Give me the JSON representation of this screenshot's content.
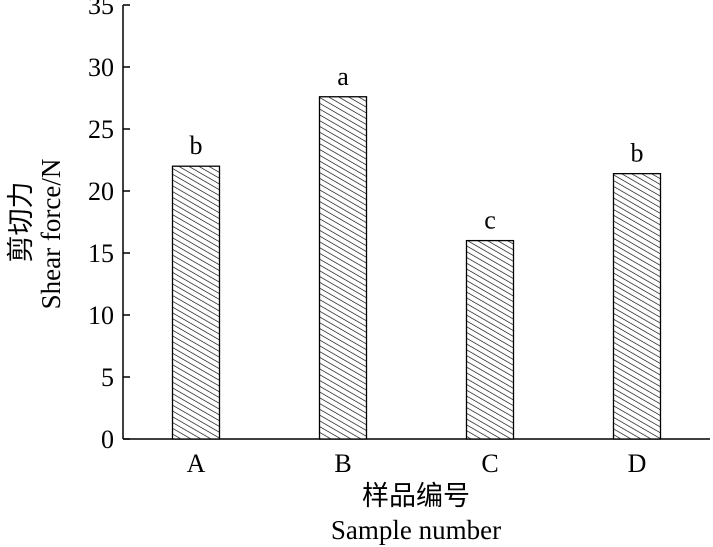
{
  "chart_data": {
    "type": "bar",
    "categories": [
      "A",
      "B",
      "C",
      "D"
    ],
    "values": [
      22,
      27.6,
      16,
      21.4
    ],
    "significance_labels": [
      "b",
      "a",
      "c",
      "b"
    ],
    "xlabel_cn": "样品编号",
    "xlabel_en": "Sample number",
    "ylabel_cn": "剪切力",
    "ylabel_en": "Shear force/N",
    "ylim": [
      0,
      35
    ],
    "yticks": [
      0,
      5,
      10,
      15,
      20,
      25,
      30,
      35
    ],
    "bar_fill": "diagonal-hatch",
    "bar_color": "#000000",
    "grid": false
  }
}
